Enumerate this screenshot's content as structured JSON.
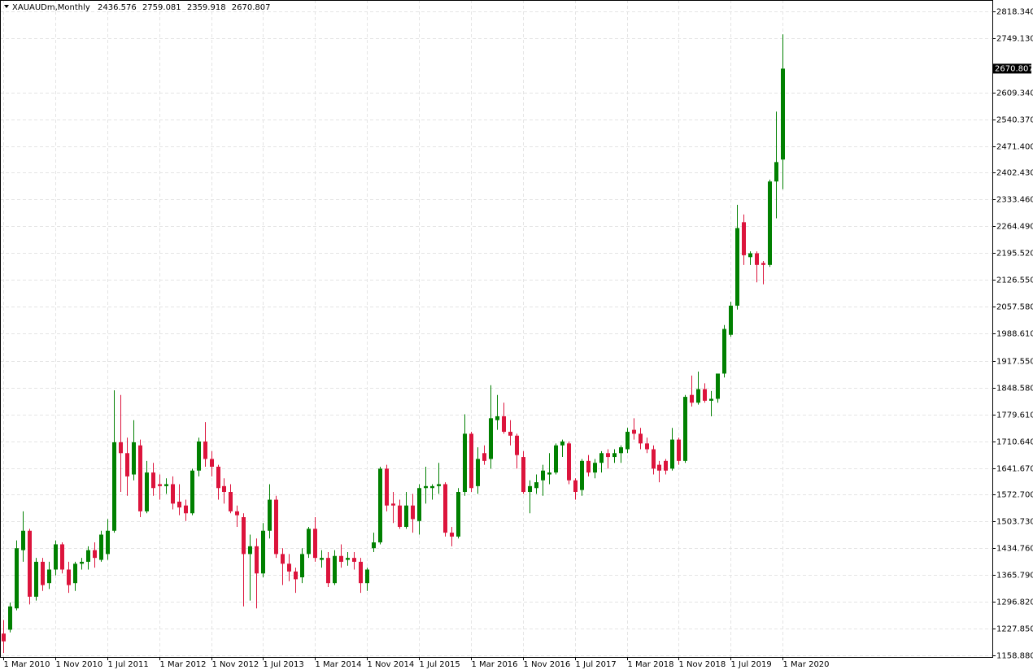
{
  "chart_data": {
    "type": "candlestick",
    "title": "XAUAUDm,Monthly",
    "up_color": "#008000",
    "down_color": "#dc143c",
    "grid": true,
    "categories": [
      "1 Mar 2010",
      null,
      null,
      null,
      null,
      null,
      null,
      null,
      "1 Nov 2010",
      null,
      null,
      null,
      null,
      null,
      null,
      null,
      "1 Jul 2011",
      null,
      null,
      null,
      null,
      null,
      null,
      null,
      "1 Mar 2012",
      null,
      null,
      null,
      null,
      null,
      null,
      null,
      "1 Nov 2012",
      null,
      null,
      null,
      null,
      null,
      null,
      null,
      "1 Jul 2013",
      null,
      null,
      null,
      null,
      null,
      null,
      null,
      "1 Mar 2014",
      null,
      null,
      null,
      null,
      null,
      null,
      null,
      "1 Nov 2014",
      null,
      null,
      null,
      null,
      null,
      null,
      null,
      "1 Jul 2015",
      null,
      null,
      null,
      null,
      null,
      null,
      null,
      "1 Mar 2016",
      null,
      null,
      null,
      null,
      null,
      null,
      null,
      "1 Nov 2016",
      null,
      null,
      null,
      null,
      null,
      null,
      null,
      "1 Jul 2017",
      null,
      null,
      null,
      null,
      null,
      null,
      null,
      "1 Mar 2018",
      null,
      null,
      null,
      null,
      null,
      null,
      null,
      "1 Nov 2018",
      null,
      null,
      null,
      null,
      null,
      null,
      null,
      "1 Jul 2019",
      null,
      null,
      null,
      null,
      null,
      null,
      null,
      "1 Mar 2020"
    ],
    "open": [
      1215,
      1225,
      1280,
      1430,
      1480,
      1310,
      1400,
      1345,
      1380,
      1445,
      1380,
      1345,
      1395,
      1400,
      1430,
      1405,
      1420,
      1480,
      1708,
      1680,
      1625,
      1700,
      1530,
      1630,
      1600,
      1595,
      1600,
      1555,
      1545,
      1525,
      1635,
      1710,
      1665,
      1645,
      1595,
      1580,
      1530,
      1515,
      1420,
      1440,
      1370,
      1480,
      1560,
      1420,
      1395,
      1375,
      1360,
      1420,
      1485,
      1405,
      1410,
      1345,
      1415,
      1405,
      1410,
      1400,
      1345,
      1435,
      1450,
      1640,
      1550,
      1545,
      1490,
      1545,
      1505,
      1590,
      1590,
      1595,
      1600,
      1475,
      1465,
      1580,
      1730,
      1595,
      1680,
      1665,
      1765,
      1775,
      1735,
      1725,
      1670,
      1580,
      1590,
      1610,
      1625,
      1630,
      1700,
      1705,
      1610,
      1585,
      1660,
      1630,
      1655,
      1680,
      1670,
      1680,
      1690,
      1740,
      1730,
      1705,
      1690,
      1650,
      1660,
      1640,
      1715,
      1660,
      1830,
      1810,
      1845,
      1815,
      1820,
      1885,
      1985,
      2060,
      2275,
      2185,
      2195,
      2170,
      2165,
      2380,
      2436.576
    ],
    "high": [
      1250,
      1295,
      1455,
      1530,
      1485,
      1410,
      1410,
      1400,
      1455,
      1450,
      1400,
      1400,
      1410,
      1440,
      1450,
      1480,
      1510,
      1842,
      1830,
      1720,
      1765,
      1715,
      1660,
      1655,
      1625,
      1615,
      1620,
      1600,
      1560,
      1640,
      1720,
      1760,
      1685,
      1650,
      1615,
      1600,
      1545,
      1525,
      1470,
      1460,
      1500,
      1600,
      1570,
      1435,
      1420,
      1385,
      1435,
      1490,
      1515,
      1430,
      1425,
      1430,
      1445,
      1425,
      1425,
      1410,
      1385,
      1475,
      1645,
      1650,
      1580,
      1560,
      1580,
      1575,
      1600,
      1645,
      1600,
      1655,
      1605,
      1490,
      1590,
      1780,
      1735,
      1695,
      1700,
      1855,
      1830,
      1810,
      1765,
      1730,
      1685,
      1610,
      1625,
      1650,
      1680,
      1705,
      1715,
      1710,
      1615,
      1665,
      1675,
      1665,
      1685,
      1690,
      1690,
      1700,
      1745,
      1770,
      1745,
      1720,
      1700,
      1660,
      1665,
      1745,
      1720,
      1830,
      1880,
      1890,
      1860,
      1840,
      1885,
      2010,
      2070,
      2320,
      2295,
      2200,
      2200,
      2175,
      2385,
      2560,
      2759.081
    ],
    "low": [
      1165,
      1218,
      1275,
      1400,
      1290,
      1300,
      1325,
      1330,
      1365,
      1370,
      1320,
      1325,
      1380,
      1380,
      1385,
      1400,
      1405,
      1475,
      1580,
      1570,
      1610,
      1515,
      1525,
      1570,
      1560,
      1575,
      1535,
      1520,
      1505,
      1520,
      1620,
      1645,
      1620,
      1560,
      1550,
      1525,
      1490,
      1285,
      1300,
      1280,
      1360,
      1460,
      1410,
      1340,
      1350,
      1320,
      1345,
      1410,
      1400,
      1385,
      1335,
      1340,
      1385,
      1390,
      1380,
      1320,
      1325,
      1425,
      1445,
      1530,
      1500,
      1485,
      1485,
      1475,
      1470,
      1550,
      1560,
      1575,
      1465,
      1440,
      1460,
      1570,
      1580,
      1575,
      1650,
      1640,
      1740,
      1730,
      1700,
      1640,
      1575,
      1525,
      1575,
      1570,
      1600,
      1625,
      1670,
      1600,
      1560,
      1570,
      1620,
      1615,
      1630,
      1640,
      1655,
      1655,
      1680,
      1715,
      1690,
      1680,
      1625,
      1605,
      1625,
      1635,
      1650,
      1655,
      1800,
      1805,
      1810,
      1775,
      1810,
      1875,
      1980,
      2050,
      2165,
      2165,
      2120,
      2115,
      2160,
      2285,
      2359.918
    ],
    "close": [
      1195,
      1285,
      1435,
      1480,
      1310,
      1400,
      1340,
      1380,
      1445,
      1380,
      1340,
      1395,
      1400,
      1430,
      1410,
      1470,
      1480,
      1708,
      1680,
      1620,
      1708,
      1530,
      1630,
      1590,
      1595,
      1600,
      1550,
      1540,
      1525,
      1635,
      1710,
      1665,
      1645,
      1590,
      1580,
      1530,
      1520,
      1420,
      1440,
      1370,
      1480,
      1560,
      1420,
      1395,
      1375,
      1355,
      1420,
      1485,
      1410,
      1410,
      1345,
      1415,
      1400,
      1410,
      1400,
      1345,
      1380,
      1450,
      1640,
      1545,
      1545,
      1490,
      1545,
      1510,
      1590,
      1595,
      1595,
      1600,
      1475,
      1465,
      1580,
      1730,
      1590,
      1665,
      1660,
      1770,
      1775,
      1735,
      1725,
      1675,
      1580,
      1595,
      1605,
      1635,
      1630,
      1700,
      1710,
      1610,
      1580,
      1660,
      1630,
      1655,
      1680,
      1670,
      1680,
      1695,
      1735,
      1730,
      1705,
      1690,
      1640,
      1635,
      1635,
      1715,
      1660,
      1825,
      1810,
      1845,
      1815,
      1820,
      1885,
      2000,
      2060,
      2260,
      2190,
      2195,
      2165,
      2165,
      2380,
      2430,
      2670.807
    ],
    "ylim": [
      1154.69,
      2847.67
    ],
    "yticks": [
      {
        "value": 1158.88,
        "label": "1158.880"
      },
      {
        "value": 1227.85,
        "label": "1227.850"
      },
      {
        "value": 1296.82,
        "label": "1296.820"
      },
      {
        "value": 1365.79,
        "label": "1365.790"
      },
      {
        "value": 1434.76,
        "label": "1434.760"
      },
      {
        "value": 1503.73,
        "label": "1503.730"
      },
      {
        "value": 1572.7,
        "label": "1572.700"
      },
      {
        "value": 1641.67,
        "label": "1641.670"
      },
      {
        "value": 1710.64,
        "label": "1710.640"
      },
      {
        "value": 1779.61,
        "label": "1779.610"
      },
      {
        "value": 1848.58,
        "label": "1848.580"
      },
      {
        "value": 1917.55,
        "label": "1917.550"
      },
      {
        "value": 1988.61,
        "label": "1988.610"
      },
      {
        "value": 2057.58,
        "label": "2057.580"
      },
      {
        "value": 2126.55,
        "label": "2126.550"
      },
      {
        "value": 2195.52,
        "label": "2195.520"
      },
      {
        "value": 2264.49,
        "label": "2264.490"
      },
      {
        "value": 2333.46,
        "label": "2333.460"
      },
      {
        "value": 2402.43,
        "label": "2402.430"
      },
      {
        "value": 2471.4,
        "label": "2471.400"
      },
      {
        "value": 2540.37,
        "label": "2540.370"
      },
      {
        "value": 2609.34,
        "label": "2609.340"
      },
      {
        "value": 2749.13,
        "label": "2749.130"
      },
      {
        "value": 2818.34,
        "label": "2818.340"
      }
    ]
  }
}
